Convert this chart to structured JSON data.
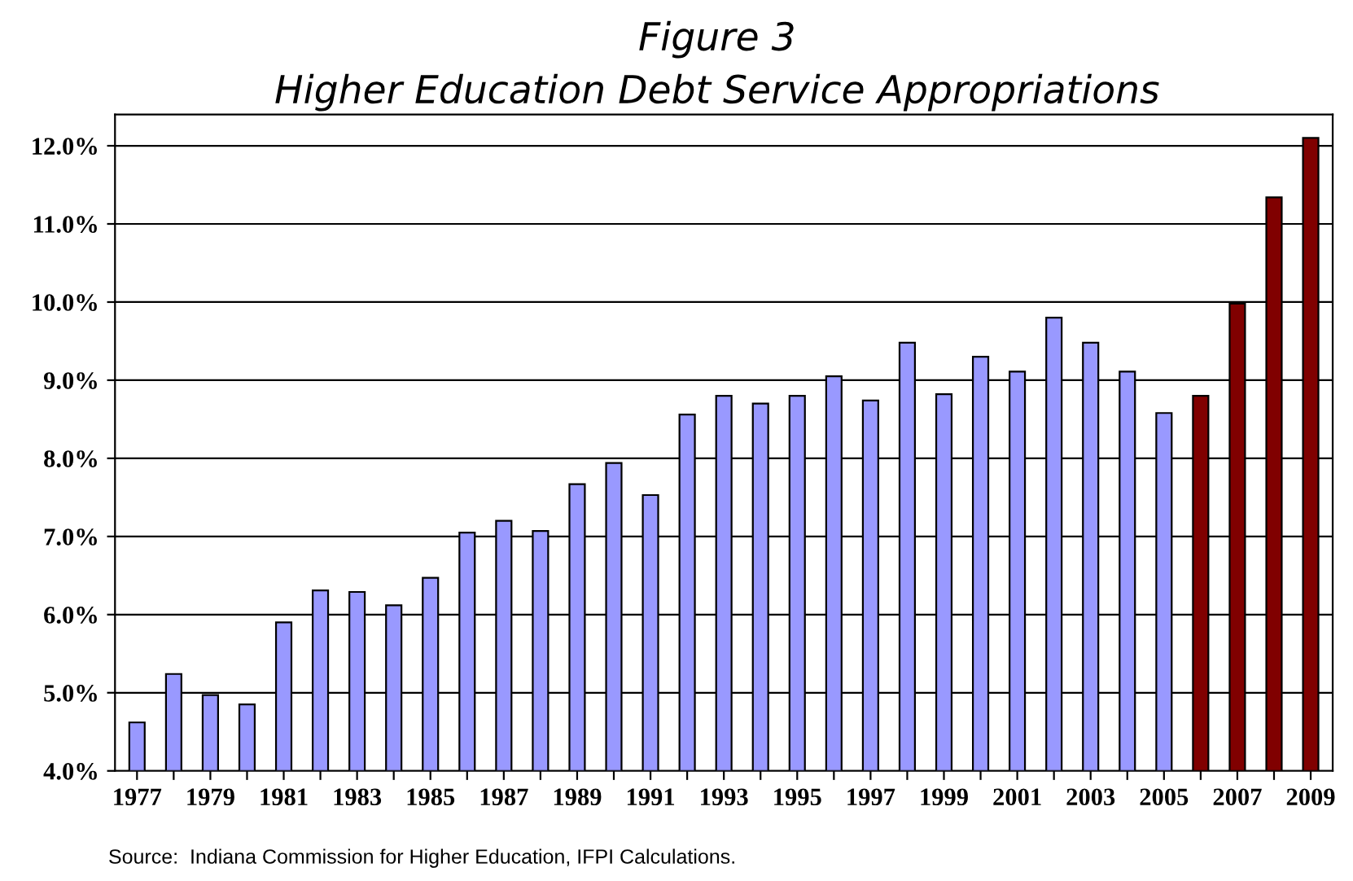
{
  "chart_data": {
    "type": "bar",
    "title": "Figure 3",
    "subtitle": "Higher Education Debt Service Appropriations",
    "categories": [
      "1977",
      null,
      "1979",
      null,
      "1981",
      null,
      "1983",
      null,
      "1985",
      null,
      "1987",
      null,
      "1989",
      null,
      "1991",
      null,
      "1993",
      null,
      "1995",
      null,
      "1997",
      null,
      "1999",
      null,
      "2001",
      null,
      "2003",
      null,
      "2005",
      null,
      "2007",
      null,
      "2009"
    ],
    "values": [
      4.62,
      5.24,
      4.97,
      4.85,
      5.9,
      6.31,
      6.29,
      6.12,
      6.47,
      7.05,
      7.2,
      7.07,
      7.67,
      7.94,
      7.53,
      8.56,
      8.8,
      8.7,
      8.8,
      9.05,
      8.74,
      9.48,
      8.82,
      9.3,
      9.11,
      9.8,
      9.48,
      9.11,
      8.58,
      8.8,
      9.98,
      11.34,
      12.1
    ],
    "colors": [
      "#9999ff",
      "#9999ff",
      "#9999ff",
      "#9999ff",
      "#9999ff",
      "#9999ff",
      "#9999ff",
      "#9999ff",
      "#9999ff",
      "#9999ff",
      "#9999ff",
      "#9999ff",
      "#9999ff",
      "#9999ff",
      "#9999ff",
      "#9999ff",
      "#9999ff",
      "#9999ff",
      "#9999ff",
      "#9999ff",
      "#9999ff",
      "#9999ff",
      "#9999ff",
      "#9999ff",
      "#9999ff",
      "#9999ff",
      "#9999ff",
      "#9999ff",
      "#9999ff",
      "#800000",
      "#800000",
      "#800000",
      "#800000"
    ],
    "ylim": [
      4.0,
      12.4
    ],
    "yticks": [
      {
        "value": 4,
        "label": "4.0%"
      },
      {
        "value": 5,
        "label": "5.0%"
      },
      {
        "value": 6,
        "label": "6.0%"
      },
      {
        "value": 7,
        "label": "7.0%"
      },
      {
        "value": 8,
        "label": "8.0%"
      },
      {
        "value": 9,
        "label": "9.0%"
      },
      {
        "value": 10,
        "label": "10.0%"
      },
      {
        "value": 11,
        "label": "11.0%"
      },
      {
        "value": 12,
        "label": "12.0%"
      }
    ],
    "grid": "y",
    "annotations": [
      "Source:  Indiana Commission for Higher Education, IFPI Calculations."
    ]
  }
}
